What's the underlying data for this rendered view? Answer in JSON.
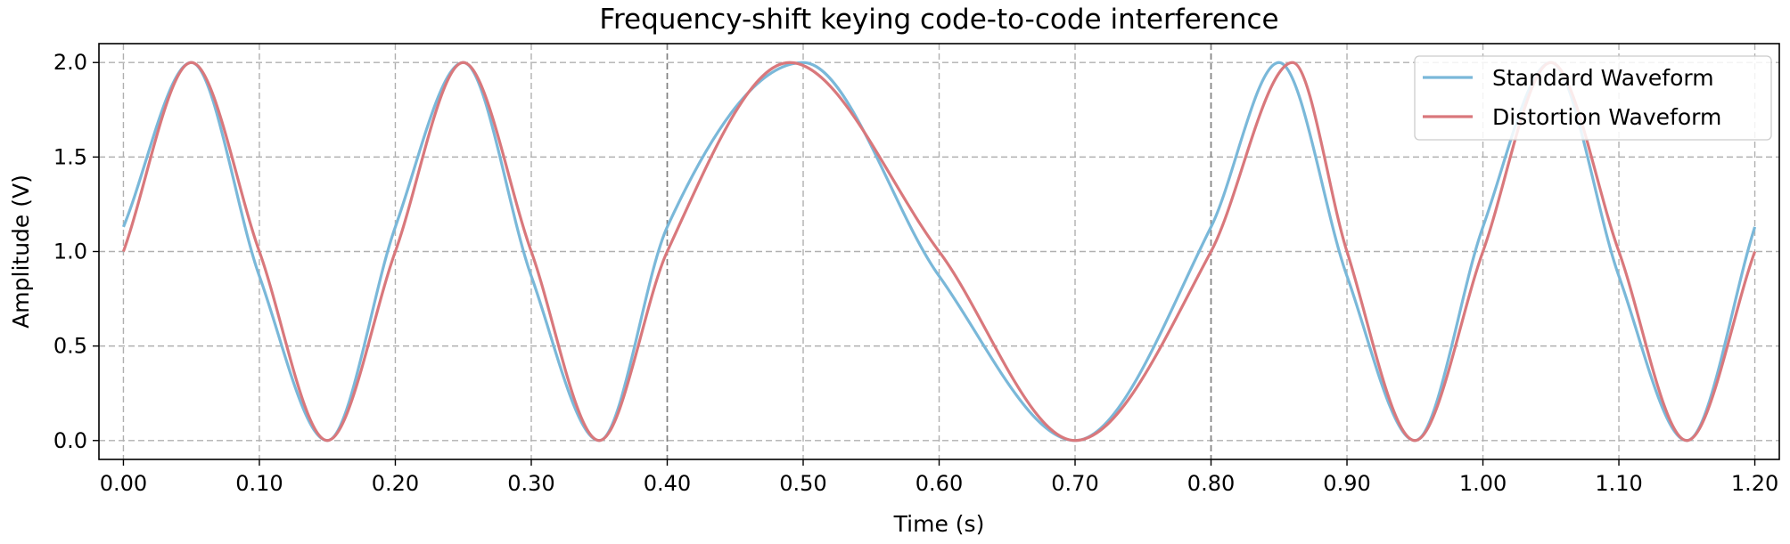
{
  "chart_data": {
    "type": "line",
    "title": "Frequency-shift keying code-to-code interference",
    "xlabel": "Time (s)",
    "ylabel": "Amplitude (V)",
    "xlim": [
      -0.018,
      1.218
    ],
    "ylim": [
      -0.1,
      2.1
    ],
    "xticks": [
      0.0,
      0.1,
      0.2,
      0.3,
      0.4,
      0.5,
      0.6,
      0.7,
      0.8,
      0.9,
      1.0,
      1.1,
      1.2
    ],
    "xtick_labels": [
      "0.00",
      "0.10",
      "0.20",
      "0.30",
      "0.40",
      "0.50",
      "0.60",
      "0.70",
      "0.80",
      "0.90",
      "1.00",
      "1.10",
      "1.20"
    ],
    "yticks": [
      0.0,
      0.5,
      1.0,
      1.5,
      2.0
    ],
    "ytick_labels": [
      "0.0",
      "0.5",
      "1.0",
      "1.5",
      "2.0"
    ],
    "symbol_boundaries": [
      0.4,
      0.8
    ],
    "grid": true,
    "legend_position": "top-right",
    "series": [
      {
        "name": "Standard Waveform",
        "color": "#7ab8d9",
        "x": [
          0.0,
          0.05,
          0.1,
          0.15,
          0.2,
          0.25,
          0.3,
          0.35,
          0.4,
          0.5,
          0.6,
          0.7,
          0.8,
          0.85,
          0.9,
          0.95,
          1.0,
          1.05,
          1.1,
          1.15,
          1.2
        ],
        "y": [
          1.13,
          2.0,
          0.87,
          0.0,
          1.13,
          2.0,
          0.87,
          0.0,
          1.13,
          2.0,
          0.87,
          0.0,
          1.13,
          2.0,
          0.87,
          0.0,
          1.13,
          2.0,
          0.87,
          0.0,
          1.13
        ]
      },
      {
        "name": "Distortion Waveform",
        "color": "#d9787c",
        "x": [
          0.0,
          0.05,
          0.1,
          0.15,
          0.2,
          0.25,
          0.3,
          0.35,
          0.4,
          0.49,
          0.6,
          0.7,
          0.8,
          0.86,
          0.9,
          0.95,
          1.0,
          1.05,
          1.1,
          1.15,
          1.2
        ],
        "y": [
          1.0,
          2.0,
          1.0,
          0.0,
          1.0,
          2.0,
          1.0,
          0.0,
          1.0,
          2.0,
          1.0,
          0.0,
          1.0,
          2.0,
          1.0,
          0.0,
          1.0,
          2.0,
          1.0,
          0.0,
          1.0
        ]
      }
    ]
  }
}
